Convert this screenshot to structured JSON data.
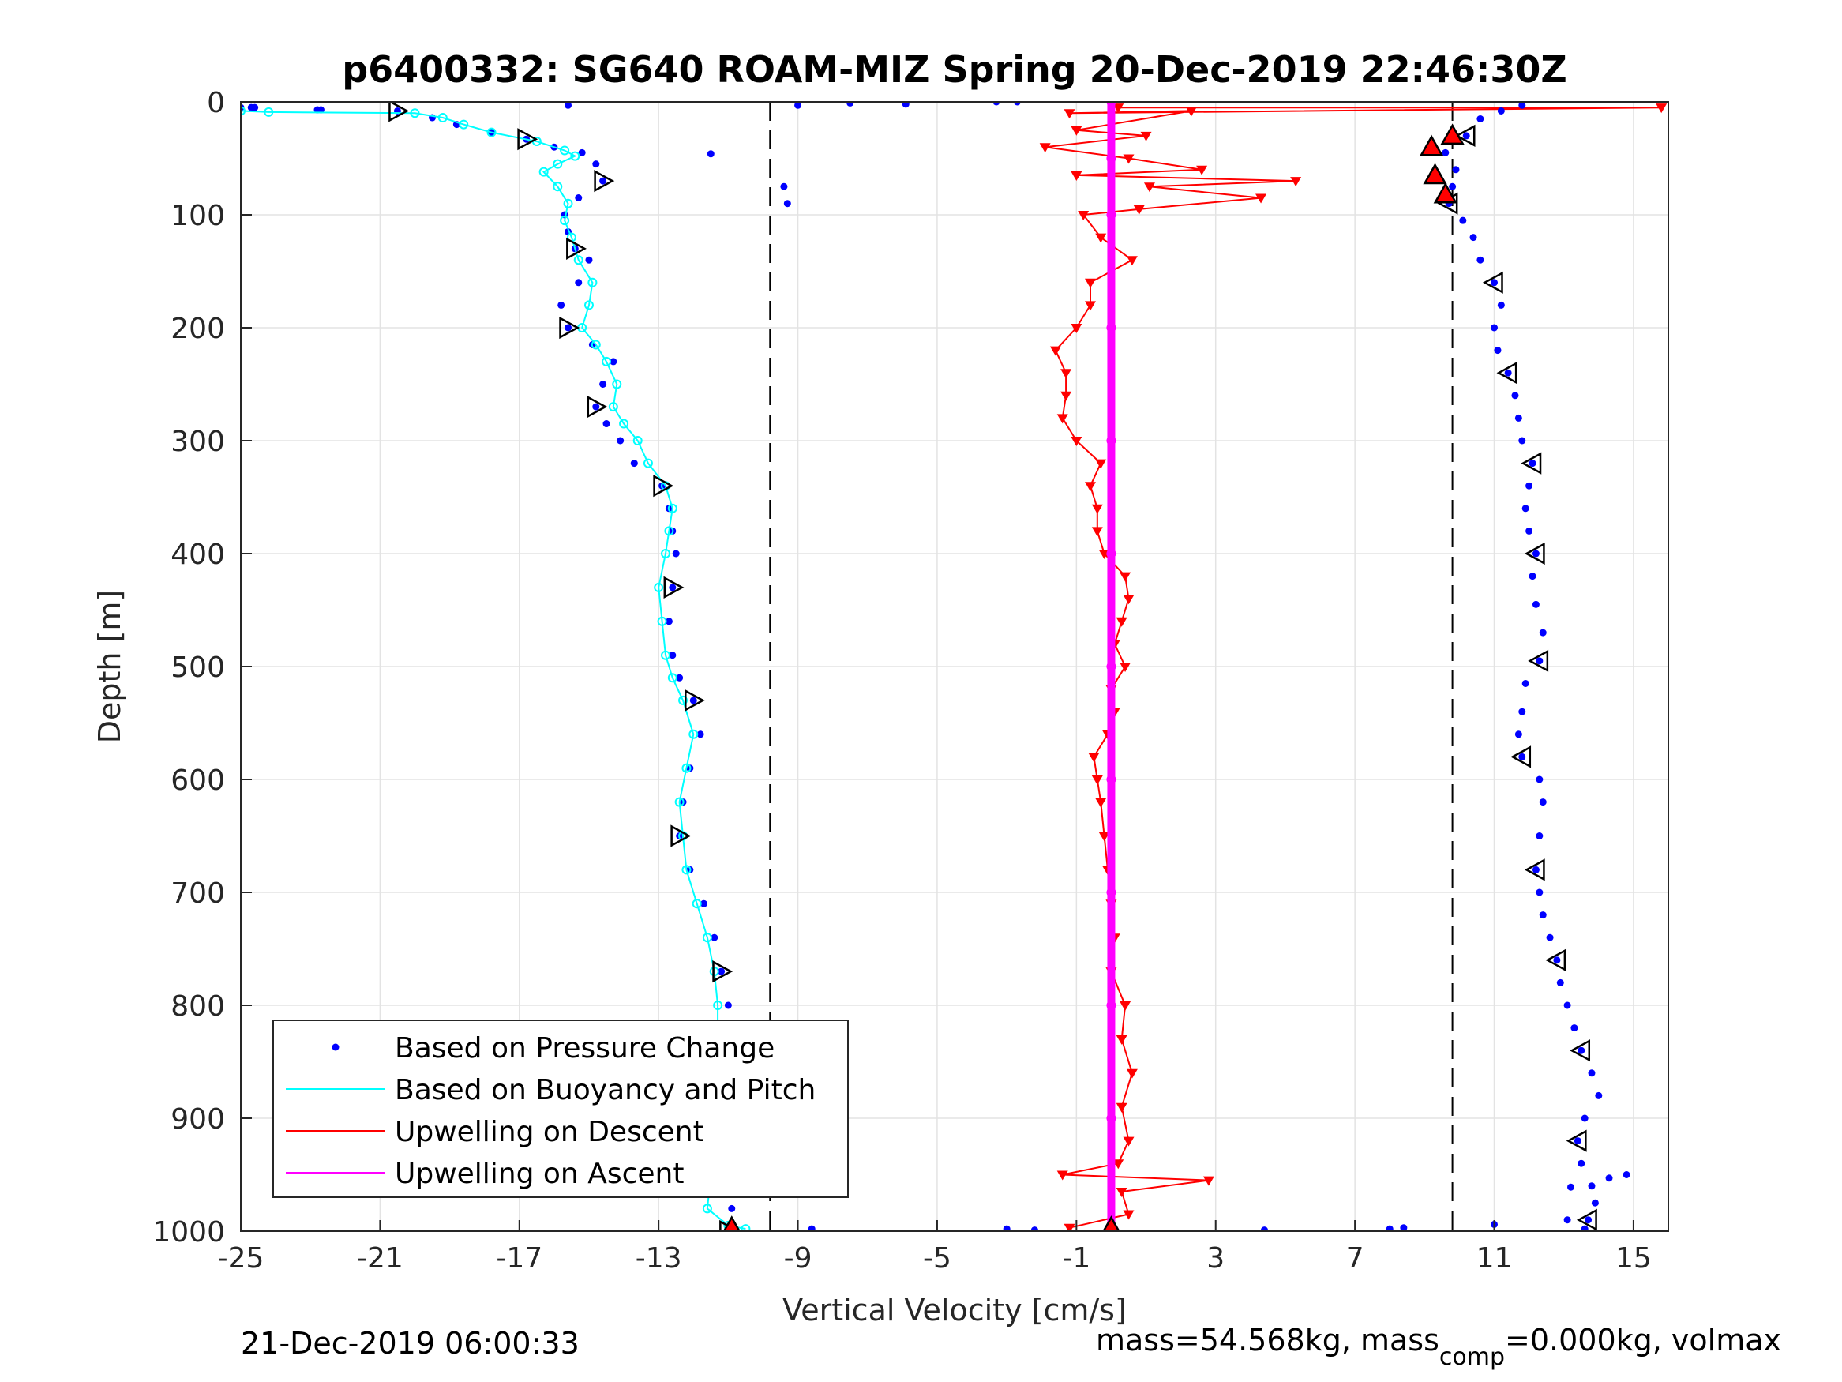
{
  "chart_data": {
    "type": "scatter",
    "title": "p6400332: SG640 ROAM-MIZ Spring 20-Dec-2019 22:46:30Z",
    "xlabel": "Vertical Velocity [cm/s]",
    "ylabel": "Depth [m]",
    "xlim": [
      -25,
      16
    ],
    "ylim": [
      1000,
      0
    ],
    "y_reversed": true,
    "grid": true,
    "xticks": [
      -25,
      -21,
      -17,
      -13,
      -9,
      -5,
      -1,
      3,
      7,
      11,
      15
    ],
    "yticks": [
      0,
      100,
      200,
      300,
      400,
      500,
      600,
      700,
      800,
      900,
      1000
    ],
    "reference_lines_x": [
      -9.8,
      9.8
    ],
    "legend_position": "lower-left",
    "series": [
      {
        "name": "Based on Pressure Change",
        "style": "dots",
        "color": "#0000ff",
        "descent": [
          [
            -24.7,
            5
          ],
          [
            -22.8,
            7
          ],
          [
            -20.5,
            8
          ],
          [
            -19.5,
            14
          ],
          [
            -18.8,
            20
          ],
          [
            -17.8,
            27
          ],
          [
            -16.8,
            33
          ],
          [
            -16.0,
            40
          ],
          [
            -15.2,
            45
          ],
          [
            -14.8,
            55
          ],
          [
            -14.6,
            70
          ],
          [
            -15.3,
            85
          ],
          [
            -15.7,
            100
          ],
          [
            -15.6,
            115
          ],
          [
            -15.4,
            130
          ],
          [
            -15.0,
            140
          ],
          [
            -15.3,
            160
          ],
          [
            -15.8,
            180
          ],
          [
            -15.6,
            200
          ],
          [
            -14.9,
            215
          ],
          [
            -14.3,
            230
          ],
          [
            -14.6,
            250
          ],
          [
            -14.8,
            270
          ],
          [
            -14.5,
            285
          ],
          [
            -14.1,
            300
          ],
          [
            -13.7,
            320
          ],
          [
            -12.9,
            340
          ],
          [
            -12.7,
            360
          ],
          [
            -12.6,
            380
          ],
          [
            -12.5,
            400
          ],
          [
            -12.6,
            430
          ],
          [
            -12.7,
            460
          ],
          [
            -12.6,
            490
          ],
          [
            -12.4,
            510
          ],
          [
            -12.0,
            530
          ],
          [
            -11.8,
            560
          ],
          [
            -12.1,
            590
          ],
          [
            -12.3,
            620
          ],
          [
            -12.4,
            650
          ],
          [
            -12.1,
            680
          ],
          [
            -11.7,
            710
          ],
          [
            -11.4,
            740
          ],
          [
            -11.2,
            770
          ],
          [
            -11.0,
            800
          ],
          [
            -10.8,
            830
          ],
          [
            -10.7,
            860
          ],
          [
            -10.6,
            890
          ],
          [
            -10.8,
            920
          ],
          [
            -10.9,
            950
          ],
          [
            -10.9,
            980
          ],
          [
            -11.0,
            1000
          ]
        ],
        "ascent": [
          [
            13.6,
            998
          ],
          [
            13.7,
            990
          ],
          [
            13.9,
            975
          ],
          [
            13.8,
            960
          ],
          [
            13.5,
            940
          ],
          [
            13.4,
            920
          ],
          [
            13.6,
            900
          ],
          [
            14.0,
            880
          ],
          [
            13.8,
            860
          ],
          [
            13.5,
            840
          ],
          [
            13.3,
            820
          ],
          [
            13.1,
            800
          ],
          [
            12.9,
            780
          ],
          [
            12.8,
            760
          ],
          [
            12.6,
            740
          ],
          [
            12.4,
            720
          ],
          [
            12.3,
            700
          ],
          [
            12.2,
            680
          ],
          [
            12.3,
            650
          ],
          [
            12.4,
            620
          ],
          [
            12.3,
            600
          ],
          [
            11.8,
            580
          ],
          [
            11.7,
            560
          ],
          [
            11.8,
            540
          ],
          [
            11.9,
            515
          ],
          [
            12.3,
            495
          ],
          [
            12.4,
            470
          ],
          [
            12.2,
            445
          ],
          [
            12.1,
            420
          ],
          [
            12.2,
            400
          ],
          [
            12.0,
            380
          ],
          [
            11.9,
            360
          ],
          [
            12.0,
            340
          ],
          [
            12.1,
            320
          ],
          [
            11.8,
            300
          ],
          [
            11.7,
            280
          ],
          [
            11.6,
            260
          ],
          [
            11.4,
            240
          ],
          [
            11.1,
            220
          ],
          [
            11.0,
            200
          ],
          [
            11.2,
            180
          ],
          [
            11.0,
            160
          ],
          [
            10.6,
            140
          ],
          [
            10.4,
            120
          ],
          [
            10.1,
            105
          ],
          [
            9.7,
            90
          ],
          [
            9.8,
            75
          ],
          [
            9.9,
            60
          ],
          [
            9.6,
            45
          ],
          [
            10.2,
            30
          ],
          [
            10.6,
            15
          ],
          [
            11.2,
            8
          ],
          [
            11.8,
            3
          ]
        ],
        "surface_points": [
          [
            -25,
            5
          ],
          [
            -24.6,
            5
          ],
          [
            -22.7,
            7
          ],
          [
            -15.6,
            3
          ],
          [
            -9,
            3
          ],
          [
            -7.5,
            1
          ],
          [
            -5.9,
            2
          ],
          [
            -3.3,
            0
          ],
          [
            -2.7,
            0
          ],
          [
            4.4,
            999
          ],
          [
            8.0,
            998
          ],
          [
            8.4,
            997
          ],
          [
            11.0,
            994
          ],
          [
            -8.6,
            998
          ],
          [
            -3.0,
            998
          ],
          [
            -2.2,
            999
          ],
          [
            -9.2,
            955
          ],
          [
            -9.4,
            75
          ],
          [
            -9.3,
            90
          ],
          [
            -11.5,
            46
          ],
          [
            14.3,
            953
          ],
          [
            14.8,
            950
          ],
          [
            13.2,
            961
          ],
          [
            13.1,
            990
          ]
        ]
      },
      {
        "name": "Based on Buoyancy and Pitch",
        "style": "line-circles",
        "color": "#00ffff",
        "descent": [
          [
            -25,
            8
          ],
          [
            -24.2,
            9
          ],
          [
            -20.0,
            10
          ],
          [
            -19.2,
            14
          ],
          [
            -18.6,
            20
          ],
          [
            -17.8,
            27
          ],
          [
            -16.5,
            35
          ],
          [
            -15.7,
            43
          ],
          [
            -15.4,
            48
          ],
          [
            -15.9,
            55
          ],
          [
            -16.3,
            62
          ],
          [
            -15.9,
            75
          ],
          [
            -15.6,
            90
          ],
          [
            -15.7,
            105
          ],
          [
            -15.5,
            120
          ],
          [
            -15.3,
            140
          ],
          [
            -14.9,
            160
          ],
          [
            -15.0,
            180
          ],
          [
            -15.2,
            200
          ],
          [
            -14.8,
            215
          ],
          [
            -14.5,
            230
          ],
          [
            -14.2,
            250
          ],
          [
            -14.3,
            270
          ],
          [
            -14.0,
            285
          ],
          [
            -13.6,
            300
          ],
          [
            -13.3,
            320
          ],
          [
            -12.8,
            340
          ],
          [
            -12.6,
            360
          ],
          [
            -12.7,
            380
          ],
          [
            -12.8,
            400
          ],
          [
            -13.0,
            430
          ],
          [
            -12.9,
            460
          ],
          [
            -12.8,
            490
          ],
          [
            -12.6,
            510
          ],
          [
            -12.3,
            530
          ],
          [
            -12.0,
            560
          ],
          [
            -12.2,
            590
          ],
          [
            -12.4,
            620
          ],
          [
            -12.3,
            650
          ],
          [
            -12.2,
            680
          ],
          [
            -11.9,
            710
          ],
          [
            -11.6,
            740
          ],
          [
            -11.4,
            770
          ],
          [
            -11.3,
            800
          ],
          [
            -11.3,
            830
          ],
          [
            -11.4,
            860
          ],
          [
            -11.4,
            890
          ],
          [
            -11.4,
            920
          ],
          [
            -11.5,
            950
          ],
          [
            -11.6,
            980
          ],
          [
            -11.0,
            995
          ],
          [
            -10.5,
            998
          ]
        ]
      },
      {
        "name": "Upwelling on Descent",
        "style": "line-triangles",
        "color": "#ff0000",
        "points": [
          [
            0.2,
            5
          ],
          [
            15.8,
            5
          ],
          [
            -1.2,
            10
          ],
          [
            2.3,
            8
          ],
          [
            -1.0,
            25
          ],
          [
            1.0,
            30
          ],
          [
            -1.9,
            40
          ],
          [
            0.5,
            50
          ],
          [
            2.6,
            60
          ],
          [
            -1.0,
            65
          ],
          [
            5.3,
            70
          ],
          [
            1.1,
            75
          ],
          [
            4.3,
            85
          ],
          [
            0.8,
            95
          ],
          [
            -0.8,
            100
          ],
          [
            -0.3,
            120
          ],
          [
            0.6,
            140
          ],
          [
            -0.6,
            160
          ],
          [
            -0.6,
            180
          ],
          [
            -1.0,
            200
          ],
          [
            -1.6,
            220
          ],
          [
            -1.3,
            240
          ],
          [
            -1.3,
            260
          ],
          [
            -1.4,
            280
          ],
          [
            -1.0,
            300
          ],
          [
            -0.3,
            320
          ],
          [
            -0.6,
            340
          ],
          [
            -0.4,
            360
          ],
          [
            -0.4,
            380
          ],
          [
            -0.2,
            400
          ],
          [
            0.4,
            420
          ],
          [
            0.5,
            440
          ],
          [
            0.3,
            460
          ],
          [
            0.1,
            480
          ],
          [
            0.4,
            500
          ],
          [
            0.0,
            520
          ],
          [
            0.1,
            540
          ],
          [
            -0.1,
            560
          ],
          [
            -0.5,
            580
          ],
          [
            -0.4,
            600
          ],
          [
            -0.3,
            620
          ],
          [
            -0.2,
            650
          ],
          [
            -0.1,
            680
          ],
          [
            0.0,
            710
          ],
          [
            0.1,
            740
          ],
          [
            0.0,
            770
          ],
          [
            0.4,
            800
          ],
          [
            0.3,
            830
          ],
          [
            0.6,
            860
          ],
          [
            0.3,
            890
          ],
          [
            0.5,
            920
          ],
          [
            0.2,
            940
          ],
          [
            -1.4,
            950
          ],
          [
            2.8,
            955
          ],
          [
            0.3,
            965
          ],
          [
            0.5,
            985
          ],
          [
            -1.2,
            997
          ]
        ]
      },
      {
        "name": "Upwelling on Ascent",
        "style": "line-stars",
        "color": "#ff00ff",
        "points": [
          [
            0.0,
            0
          ],
          [
            0.0,
            50
          ],
          [
            0.0,
            100
          ],
          [
            0.0,
            200
          ],
          [
            0.0,
            300
          ],
          [
            0.0,
            400
          ],
          [
            0.0,
            500
          ],
          [
            0.0,
            600
          ],
          [
            0.0,
            700
          ],
          [
            0.0,
            800
          ],
          [
            0.0,
            900
          ],
          [
            0.0,
            1000
          ]
        ]
      }
    ],
    "apogee_markers": [
      [
        -10.9,
        997
      ],
      [
        0.0,
        997
      ],
      [
        9.2,
        40
      ],
      [
        9.8,
        30
      ],
      [
        9.3,
        65
      ],
      [
        9.6,
        82
      ]
    ]
  },
  "footer": {
    "timestamp": "21-Dec-2019 06:00:33",
    "mass_prefix": "mass=54.568kg, mass",
    "mass_sub": "comp",
    "mass_suffix": "=0.000kg, volmax"
  }
}
